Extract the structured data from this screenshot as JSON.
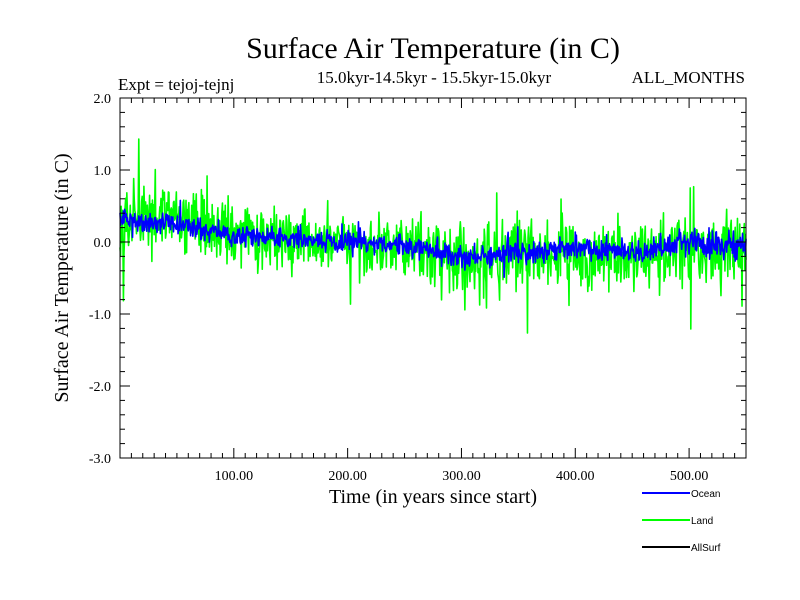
{
  "chart_data": {
    "type": "line",
    "title": "Surface Air Temperature (in C)",
    "subtitle": "15.0kyr-14.5kyr - 15.5kyr-15.0kyr",
    "expt_label": "Expt = tejoj-tejnj",
    "period_label": "ALL_MONTHS",
    "xlabel": "Time (in years since start)",
    "ylabel": "Surface Air Temperature (in C)",
    "xlim": [
      0,
      550
    ],
    "ylim": [
      -3.0,
      2.0
    ],
    "x_ticks": [
      100,
      200,
      300,
      400,
      500
    ],
    "x_tick_labels": [
      "100.00",
      "200.00",
      "300.00",
      "400.00",
      "500.00"
    ],
    "y_ticks": [
      2.0,
      1.0,
      0.0,
      -1.0,
      -2.0,
      -3.0
    ],
    "y_tick_labels": [
      "2.0",
      "1.0",
      "0.0",
      "-1.0",
      "-2.0",
      "-3.0"
    ],
    "legend_position": "bottom-right",
    "series": [
      {
        "name": "Land",
        "color": "#00ff00",
        "trend_x": [
          0,
          50,
          100,
          150,
          200,
          250,
          300,
          350,
          400,
          450,
          500,
          550
        ],
        "trend_y": [
          0.35,
          0.3,
          0.1,
          0.0,
          -0.05,
          -0.05,
          -0.25,
          -0.2,
          -0.15,
          -0.2,
          -0.1,
          -0.15
        ],
        "amplitude": [
          0.7,
          0.75,
          0.65,
          0.6,
          0.6,
          0.6,
          0.75,
          0.75,
          0.7,
          0.7,
          0.8,
          0.85
        ]
      },
      {
        "name": "Ocean",
        "color": "#0000ff",
        "trend_x": [
          0,
          50,
          100,
          150,
          200,
          250,
          300,
          350,
          400,
          450,
          500,
          550
        ],
        "trend_y": [
          0.3,
          0.25,
          0.1,
          0.05,
          0.0,
          -0.05,
          -0.2,
          -0.15,
          -0.1,
          -0.15,
          0.0,
          -0.05
        ],
        "amplitude": [
          0.22,
          0.22,
          0.2,
          0.2,
          0.2,
          0.2,
          0.25,
          0.25,
          0.22,
          0.22,
          0.28,
          0.3
        ]
      },
      {
        "name": "AllSurf",
        "color": "#000000",
        "trend_x": [
          0,
          550
        ],
        "trend_y": [
          0.0,
          0.0
        ],
        "amplitude": [
          0.0,
          0.0
        ]
      }
    ]
  }
}
